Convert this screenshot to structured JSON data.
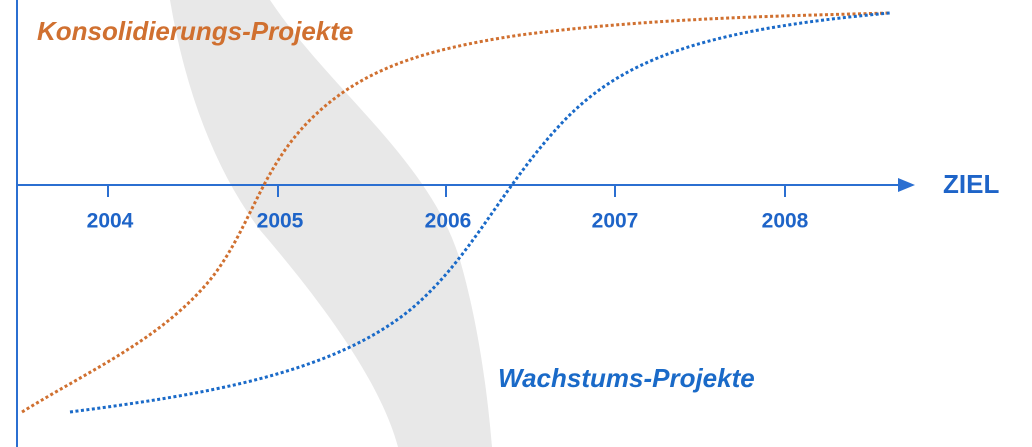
{
  "labels": {
    "top_curve": "Konsolidierungs-Projekte",
    "bottom_curve": "Wachstums-Projekte",
    "axis_end": "ZIEL"
  },
  "years": [
    "2004",
    "2005",
    "2006",
    "2007",
    "2008"
  ]
}
